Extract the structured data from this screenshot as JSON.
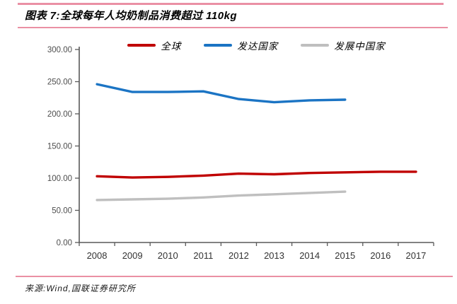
{
  "header": {
    "title": "图表 7:全球每年人均奶制品消费超过 110kg"
  },
  "footer": {
    "source": "来源:Wind,国联证券研究所"
  },
  "colors": {
    "accent_rule": "#EA90A4",
    "axis": "#595959",
    "global_series": "#C00000",
    "developed_series": "#1B74C4",
    "developing_series": "#BFBFBF"
  },
  "chart_data": {
    "type": "line",
    "title": "图表 7:全球每年人均奶制品消费超过 110kg",
    "categories": [
      "2008",
      "2009",
      "2010",
      "2011",
      "2012",
      "2013",
      "2014",
      "2015",
      "2016",
      "2017"
    ],
    "series": [
      {
        "key": "global",
        "name": "全球",
        "color": "#C00000",
        "values": [
          103,
          101,
          102,
          104,
          107,
          106,
          108,
          109,
          110,
          110
        ]
      },
      {
        "key": "developed-countries",
        "name": "发达国家",
        "color": "#1B74C4",
        "values": [
          246,
          234,
          234,
          235,
          223,
          218,
          221,
          222,
          null,
          null
        ]
      },
      {
        "key": "developing-countries",
        "name": "发展中国家",
        "color": "#BFBFBF",
        "values": [
          66,
          67,
          68,
          70,
          73,
          75,
          77,
          79,
          null,
          null
        ]
      }
    ],
    "ylim": [
      0,
      300
    ],
    "ytick_step": 50,
    "ytick_labels": [
      "0.00",
      "50.00",
      "100.00",
      "150.00",
      "200.00",
      "250.00",
      "300.00"
    ],
    "xlabel": "",
    "ylabel": "",
    "legend_position": "top",
    "grid": false
  }
}
